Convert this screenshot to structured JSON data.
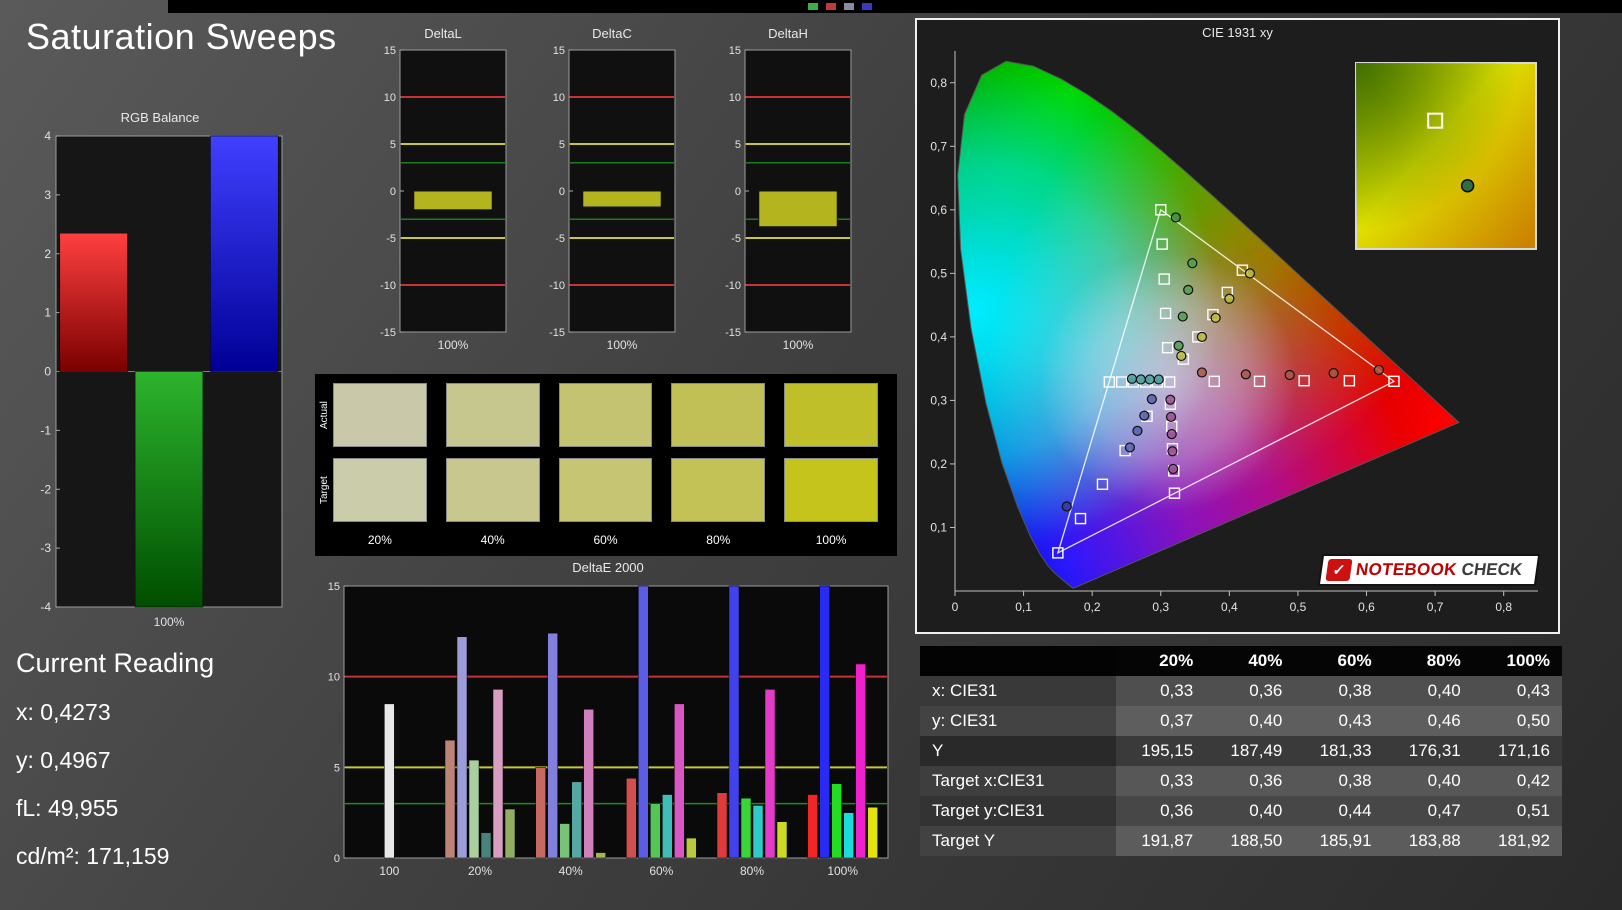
{
  "page": {
    "title": "Saturation Sweeps"
  },
  "top_strip": {
    "marks": [
      "#3fae3f",
      "#c03a3a",
      "#8a8aa0",
      "#3a3ac0"
    ]
  },
  "logo": {
    "icon": "✓",
    "part1": "NOTEBOOK",
    "part2": "CHECK"
  },
  "current_reading": {
    "title": "Current Reading",
    "lines": [
      "x: 0,4273",
      "y: 0,4967",
      "fL: 49,955",
      "cd/m²: 171,159"
    ]
  },
  "chart_data": [
    {
      "id": "rgb_balance",
      "type": "bar",
      "title": "RGB Balance",
      "xlabel": "100%",
      "ylim": [
        -4,
        4
      ],
      "yticks": [
        "4",
        "3",
        "2",
        "1",
        "0",
        "-1",
        "-2",
        "-3",
        "-4"
      ],
      "categories": [
        "Red",
        "Green",
        "Blue"
      ],
      "values": [
        2.35,
        -4,
        4
      ],
      "bar_gradients": [
        [
          "#ff4040",
          "#7a0000"
        ],
        [
          "#2db42d",
          "#004e00"
        ],
        [
          "#4040ff",
          "#000096"
        ]
      ]
    },
    {
      "id": "delta_l",
      "type": "bar",
      "title": "DeltaL",
      "xlabel": "100%",
      "ylim": [
        -15,
        15
      ],
      "yticks": [
        "15",
        "10",
        "5",
        "0",
        "-5",
        "-10",
        "-15"
      ],
      "ref_lines": [
        {
          "v": 10,
          "color": "#c83232",
          "width": 2
        },
        {
          "v": -10,
          "color": "#c83232",
          "width": 2
        },
        {
          "v": 5,
          "color": "#c8c832",
          "width": 2
        },
        {
          "v": -5,
          "color": "#c8c832",
          "width": 2
        },
        {
          "v": 3,
          "color": "#1e7a1e",
          "width": 1.5
        },
        {
          "v": -3,
          "color": "#1e7a1e",
          "width": 1.5
        }
      ],
      "values": [
        -2.0
      ],
      "bar_color": "#b4b41e"
    },
    {
      "id": "delta_c",
      "type": "bar",
      "title": "DeltaC",
      "xlabel": "100%",
      "ylim": [
        -15,
        15
      ],
      "yticks": [
        "15",
        "10",
        "5",
        "0",
        "-5",
        "-10",
        "-15"
      ],
      "ref_lines": [
        {
          "v": 10,
          "color": "#c83232",
          "width": 2
        },
        {
          "v": -10,
          "color": "#c83232",
          "width": 2
        },
        {
          "v": 5,
          "color": "#c8c832",
          "width": 2
        },
        {
          "v": -5,
          "color": "#c8c832",
          "width": 2
        },
        {
          "v": 3,
          "color": "#1e7a1e",
          "width": 1.5
        },
        {
          "v": -3,
          "color": "#1e7a1e",
          "width": 1.5
        }
      ],
      "values": [
        -1.7
      ],
      "bar_color": "#b4b41e"
    },
    {
      "id": "delta_h",
      "type": "bar",
      "title": "DeltaH",
      "xlabel": "100%",
      "ylim": [
        -15,
        15
      ],
      "yticks": [
        "15",
        "10",
        "5",
        "0",
        "-5",
        "-10",
        "-15"
      ],
      "ref_lines": [
        {
          "v": 10,
          "color": "#c83232",
          "width": 2
        },
        {
          "v": -10,
          "color": "#c83232",
          "width": 2
        },
        {
          "v": 5,
          "color": "#c8c832",
          "width": 2
        },
        {
          "v": -5,
          "color": "#c8c832",
          "width": 2
        },
        {
          "v": 3,
          "color": "#1e7a1e",
          "width": 1.5
        },
        {
          "v": -3,
          "color": "#1e7a1e",
          "width": 1.5
        }
      ],
      "values": [
        -3.8
      ],
      "bar_color": "#b4b41e"
    },
    {
      "id": "saturation_swatches",
      "type": "table",
      "row_labels": [
        "Actual",
        "Target"
      ],
      "col_labels": [
        "20%",
        "40%",
        "60%",
        "80%",
        "100%"
      ],
      "actual_colors": [
        "#c9c9a9",
        "#c6c78e",
        "#c3c372",
        "#c0c057",
        "#bfbf2a"
      ],
      "target_colors": [
        "#cbcca9",
        "#c8c88e",
        "#c5c573",
        "#c2c256",
        "#c4c41c"
      ]
    },
    {
      "id": "delta_e_2000",
      "type": "bar",
      "title": "DeltaE 2000",
      "ylim": [
        0,
        15
      ],
      "yticks": [
        15,
        10,
        5,
        0
      ],
      "ref_lines": [
        {
          "v": 10,
          "color": "#c83232",
          "width": 2
        },
        {
          "v": 5,
          "color": "#c8c832",
          "width": 2
        },
        {
          "v": 3,
          "color": "#1e8a1e",
          "width": 1.5
        }
      ],
      "groups": [
        {
          "label": "100",
          "bars": [
            {
              "v": 8.5,
              "c": "#e8e8e8"
            }
          ]
        },
        {
          "label": "20%",
          "bars": [
            {
              "v": 6.5,
              "c": "#bd8377"
            },
            {
              "v": 12.2,
              "c": "#9c9cd9"
            },
            {
              "v": 5.4,
              "c": "#a9cf9e"
            },
            {
              "v": 1.4,
              "c": "#49817d"
            },
            {
              "v": 9.3,
              "c": "#d79ec2"
            },
            {
              "v": 2.7,
              "c": "#8fae62"
            }
          ]
        },
        {
          "label": "40%",
          "bars": [
            {
              "v": 5.0,
              "c": "#c56a60"
            },
            {
              "v": 12.4,
              "c": "#8181dd"
            },
            {
              "v": 1.9,
              "c": "#79c379"
            },
            {
              "v": 4.2,
              "c": "#56a8a4"
            },
            {
              "v": 8.2,
              "c": "#d27fbd"
            },
            {
              "v": 0.3,
              "c": "#a3b455"
            }
          ]
        },
        {
          "label": "60%",
          "bars": [
            {
              "v": 4.4,
              "c": "#d14f4f"
            },
            {
              "v": 15,
              "c": "#5d5de3"
            },
            {
              "v": 3.0,
              "c": "#55c555"
            },
            {
              "v": 3.5,
              "c": "#41bdb7"
            },
            {
              "v": 8.5,
              "c": "#d957c4"
            },
            {
              "v": 1.1,
              "c": "#bac83e"
            }
          ]
        },
        {
          "label": "80%",
          "bars": [
            {
              "v": 3.6,
              "c": "#df3b3b"
            },
            {
              "v": 15,
              "c": "#4242ec"
            },
            {
              "v": 3.3,
              "c": "#38d438"
            },
            {
              "v": 2.9,
              "c": "#2fcaca"
            },
            {
              "v": 9.3,
              "c": "#e43bc9"
            },
            {
              "v": 2.0,
              "c": "#ced926"
            }
          ]
        },
        {
          "label": "100%",
          "bars": [
            {
              "v": 3.5,
              "c": "#f12626"
            },
            {
              "v": 15,
              "c": "#2a2af5"
            },
            {
              "v": 4.1,
              "c": "#22dd22"
            },
            {
              "v": 2.5,
              "c": "#1cdbdb"
            },
            {
              "v": 10.7,
              "c": "#ee22cd"
            },
            {
              "v": 2.8,
              "c": "#e3e312"
            }
          ]
        }
      ]
    },
    {
      "id": "cie_1931_xy",
      "type": "scatter",
      "title": "CIE 1931 xy",
      "xlim": [
        0,
        0.85
      ],
      "ylim": [
        0,
        0.85
      ],
      "xticks": [
        "0",
        "0,1",
        "0,2",
        "0,3",
        "0,4",
        "0,5",
        "0,6",
        "0,7",
        "0,8"
      ],
      "yticks": [
        "0,1",
        "0,2",
        "0,3",
        "0,4",
        "0,5",
        "0,6",
        "0,7",
        "0,8"
      ],
      "gamut_triangle": [
        [
          0.64,
          0.33
        ],
        [
          0.3,
          0.6
        ],
        [
          0.15,
          0.06
        ]
      ],
      "white_point": [
        0.313,
        0.329
      ],
      "targets": [
        [
          0.313,
          0.329
        ],
        [
          0.333,
          0.365
        ],
        [
          0.354,
          0.4
        ],
        [
          0.376,
          0.435
        ],
        [
          0.397,
          0.47
        ],
        [
          0.419,
          0.505
        ],
        [
          0.378,
          0.33
        ],
        [
          0.444,
          0.33
        ],
        [
          0.509,
          0.331
        ],
        [
          0.575,
          0.331
        ],
        [
          0.64,
          0.33
        ],
        [
          0.31,
          0.383
        ],
        [
          0.307,
          0.437
        ],
        [
          0.305,
          0.491
        ],
        [
          0.302,
          0.546
        ],
        [
          0.3,
          0.6
        ],
        [
          0.28,
          0.275
        ],
        [
          0.248,
          0.221
        ],
        [
          0.215,
          0.168
        ],
        [
          0.183,
          0.114
        ],
        [
          0.15,
          0.06
        ],
        [
          0.295,
          0.329
        ],
        [
          0.278,
          0.329
        ],
        [
          0.26,
          0.329
        ],
        [
          0.243,
          0.329
        ],
        [
          0.225,
          0.329
        ],
        [
          0.314,
          0.294
        ],
        [
          0.316,
          0.259
        ],
        [
          0.317,
          0.224
        ],
        [
          0.319,
          0.189
        ],
        [
          0.32,
          0.154
        ]
      ],
      "measurements": [
        [
          0.33,
          0.37,
          "#b8bb3a"
        ],
        [
          0.36,
          0.4,
          "#b8bb3a"
        ],
        [
          0.38,
          0.43,
          "#b8bb3a"
        ],
        [
          0.4,
          0.46,
          "#b8bb3a"
        ],
        [
          0.43,
          0.5,
          "#b8bb3a"
        ],
        [
          0.326,
          0.386,
          "#4f9f4f"
        ],
        [
          0.332,
          0.432,
          "#4f9f4f"
        ],
        [
          0.34,
          0.474,
          "#4f9f4f"
        ],
        [
          0.346,
          0.516,
          "#4f9f4f"
        ],
        [
          0.322,
          0.588,
          "#3f8f3f"
        ],
        [
          0.36,
          0.344,
          "#a8584a"
        ],
        [
          0.424,
          0.341,
          "#a8584a"
        ],
        [
          0.488,
          0.34,
          "#a8584a"
        ],
        [
          0.552,
          0.343,
          "#a8584a"
        ],
        [
          0.618,
          0.348,
          "#a8584a"
        ],
        [
          0.287,
          0.302,
          "#5560b0"
        ],
        [
          0.276,
          0.276,
          "#5560b0"
        ],
        [
          0.266,
          0.252,
          "#5560b0"
        ],
        [
          0.255,
          0.226,
          "#5560b0"
        ],
        [
          0.163,
          0.133,
          "#3a3a9a"
        ],
        [
          0.297,
          0.333,
          "#3f9a9a"
        ],
        [
          0.284,
          0.333,
          "#3f9a9a"
        ],
        [
          0.271,
          0.333,
          "#3f9a9a"
        ],
        [
          0.258,
          0.334,
          "#3f9a9a"
        ],
        [
          0.314,
          0.301,
          "#9a4f8f"
        ],
        [
          0.315,
          0.274,
          "#9a4f8f"
        ],
        [
          0.316,
          0.247,
          "#9a4f8f"
        ],
        [
          0.317,
          0.22,
          "#9a4f8f"
        ],
        [
          0.318,
          0.192,
          "#9a4f8f"
        ]
      ],
      "inset": {
        "colors": [
          "#a8c600",
          "#e0e000",
          "#cc8400"
        ],
        "corner_color": "#3c6a00",
        "square": [
          0.44,
          0.31
        ],
        "dot": [
          0.62,
          0.66
        ],
        "dot_color": "#2f6e46"
      }
    },
    {
      "id": "results_table",
      "type": "table",
      "header": [
        "",
        "20%",
        "40%",
        "60%",
        "80%",
        "100%"
      ],
      "rows": [
        {
          "label": "x: CIE31",
          "values": [
            "0,33",
            "0,36",
            "0,38",
            "0,40",
            "0,43"
          ]
        },
        {
          "label": "y: CIE31",
          "values": [
            "0,37",
            "0,40",
            "0,43",
            "0,46",
            "0,50"
          ]
        },
        {
          "label": "Y",
          "values": [
            "195,15",
            "187,49",
            "181,33",
            "176,31",
            "171,16"
          ]
        },
        {
          "label": "Target x:CIE31",
          "values": [
            "0,33",
            "0,36",
            "0,38",
            "0,40",
            "0,42"
          ]
        },
        {
          "label": "Target y:CIE31",
          "values": [
            "0,36",
            "0,40",
            "0,44",
            "0,47",
            "0,51"
          ]
        },
        {
          "label": "Target Y",
          "values": [
            "191,87",
            "188,50",
            "185,91",
            "183,88",
            "181,92"
          ]
        }
      ]
    }
  ]
}
